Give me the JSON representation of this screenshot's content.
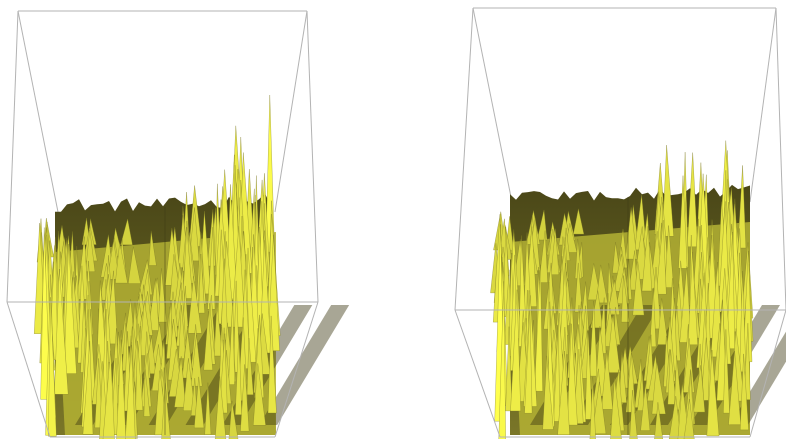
{
  "plots": [
    {
      "id": "left",
      "colors": {
        "bright": "#ffff4d",
        "mid": "#b4b234",
        "dark": "#3d3a14",
        "edge": "#b3b3b3"
      }
    },
    {
      "id": "right",
      "colors": {
        "bright": "#ffff4d",
        "mid": "#b4b234",
        "dark": "#3d3a14",
        "edge": "#b3b3b3"
      }
    }
  ]
}
